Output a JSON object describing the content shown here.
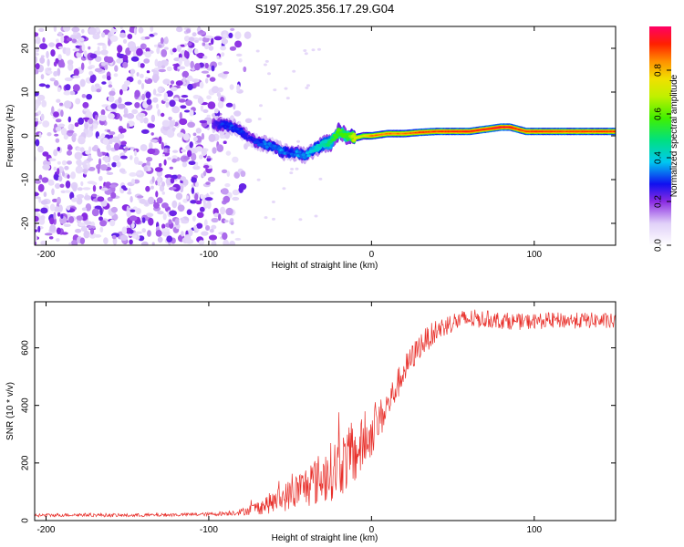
{
  "title": "S197.2025.356.17.29.G04",
  "chart_data": [
    {
      "type": "heatmap",
      "title": "S197.2025.356.17.29.G04",
      "xlabel": "Height of straight line (km)",
      "ylabel": "Frequency (Hz)",
      "xlim": [
        -207,
        150
      ],
      "ylim": [
        -25,
        25
      ],
      "x_ticks": [
        -200,
        -100,
        0,
        100
      ],
      "y_ticks": [
        -20,
        -10,
        0,
        10,
        20
      ],
      "colorbar": {
        "label": "Normalized spectral amplitude",
        "range": [
          0,
          1
        ],
        "ticks": [
          "0.0",
          "0.2",
          "0.4",
          "0.6",
          "0.8"
        ],
        "tick_values": [
          0.0,
          0.2,
          0.4,
          0.6,
          0.8
        ]
      },
      "noise_region_x": [
        -207,
        -80
      ],
      "ridge": {
        "x": [
          -97,
          -90,
          -85,
          -80,
          -75,
          -70,
          -65,
          -60,
          -55,
          -50,
          -45,
          -40,
          -35,
          -30,
          -25,
          -20,
          -15,
          -10,
          -5,
          0,
          10,
          20,
          30,
          40,
          50,
          60,
          70,
          80,
          85,
          90,
          95,
          100,
          110,
          120,
          130,
          140,
          150
        ],
        "frequency": [
          2.5,
          2.5,
          2.0,
          1.0,
          -0.5,
          -1.5,
          -2.0,
          -2.5,
          -3.5,
          -4.0,
          -4.0,
          -4.5,
          -3.0,
          -2.0,
          -1.5,
          1.0,
          0.0,
          -0.5,
          0.0,
          0.0,
          0.5,
          0.5,
          0.8,
          1.0,
          1.0,
          1.0,
          1.5,
          2.0,
          2.0,
          1.5,
          1.0,
          1.0,
          1.0,
          1.0,
          1.0,
          1.0,
          1.0
        ],
        "amplitude": [
          0.25,
          0.3,
          0.3,
          0.3,
          0.25,
          0.3,
          0.35,
          0.3,
          0.35,
          0.3,
          0.35,
          0.35,
          0.4,
          0.45,
          0.5,
          0.6,
          0.55,
          0.75,
          0.7,
          0.85,
          0.85,
          0.85,
          0.9,
          0.9,
          0.92,
          0.92,
          0.92,
          0.95,
          0.95,
          0.9,
          0.9,
          0.92,
          0.9,
          0.9,
          0.9,
          0.9,
          0.9
        ]
      }
    },
    {
      "type": "line",
      "xlabel": "Height of straight line (km)",
      "ylabel": "SNR (10 * v/v)",
      "xlim": [
        -207,
        150
      ],
      "ylim": [
        0,
        760
      ],
      "x_ticks": [
        -200,
        -100,
        0,
        100
      ],
      "y_ticks": [
        0,
        200,
        400,
        600
      ],
      "color": "#e8302b",
      "x": [
        -207,
        -180,
        -150,
        -120,
        -100,
        -90,
        -80,
        -70,
        -60,
        -50,
        -40,
        -30,
        -20,
        -10,
        0,
        10,
        20,
        30,
        40,
        50,
        60,
        70,
        80,
        90,
        100,
        110,
        120,
        130,
        140,
        150
      ],
      "y": [
        18,
        20,
        18,
        20,
        22,
        25,
        30,
        45,
        65,
        90,
        120,
        150,
        190,
        230,
        300,
        400,
        520,
        610,
        660,
        690,
        700,
        700,
        695,
        690,
        692,
        695,
        695,
        695,
        695,
        690
      ],
      "noise": [
        6,
        6,
        6,
        6,
        6,
        8,
        12,
        25,
        40,
        55,
        75,
        95,
        110,
        110,
        80,
        60,
        50,
        45,
        40,
        35,
        35,
        30,
        30,
        28,
        28,
        28,
        28,
        28,
        28,
        28
      ]
    }
  ]
}
